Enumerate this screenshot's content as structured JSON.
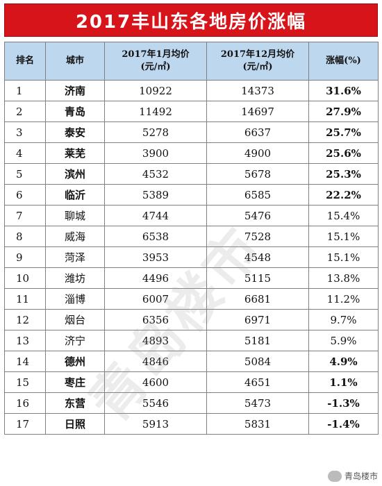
{
  "title": "2017丰山东各地房价涨幅",
  "table": {
    "headers": [
      {
        "line1": "排名",
        "line2": ""
      },
      {
        "line1": "城市",
        "line2": ""
      },
      {
        "line1": "2017年1月均价",
        "line2": "(元/㎡)"
      },
      {
        "line1": "2017年12月均价",
        "line2": "(元/㎡)"
      },
      {
        "line1": "涨幅(%)",
        "line2": ""
      }
    ],
    "rows": [
      {
        "rank": "1",
        "city": "济南",
        "jan": "10922",
        "dec": "14373",
        "pct": "31.6%",
        "highlight": "red"
      },
      {
        "rank": "2",
        "city": "青岛",
        "jan": "11492",
        "dec": "14697",
        "pct": "27.9%",
        "highlight": "red"
      },
      {
        "rank": "3",
        "city": "泰安",
        "jan": "5278",
        "dec": "6637",
        "pct": "25.7%",
        "highlight": "red"
      },
      {
        "rank": "4",
        "city": "莱芜",
        "jan": "3900",
        "dec": "4900",
        "pct": "25.6%",
        "highlight": "red"
      },
      {
        "rank": "5",
        "city": "滨州",
        "jan": "4532",
        "dec": "5678",
        "pct": "25.3%",
        "highlight": "red"
      },
      {
        "rank": "6",
        "city": "临沂",
        "jan": "5389",
        "dec": "6585",
        "pct": "22.2%",
        "highlight": "red"
      },
      {
        "rank": "7",
        "city": "聊城",
        "jan": "4744",
        "dec": "5476",
        "pct": "15.4%",
        "highlight": "none"
      },
      {
        "rank": "8",
        "city": "威海",
        "jan": "6538",
        "dec": "7528",
        "pct": "15.1%",
        "highlight": "none"
      },
      {
        "rank": "9",
        "city": "菏泽",
        "jan": "3953",
        "dec": "4548",
        "pct": "15.1%",
        "highlight": "none"
      },
      {
        "rank": "10",
        "city": "潍坊",
        "jan": "4496",
        "dec": "5115",
        "pct": "13.8%",
        "highlight": "none"
      },
      {
        "rank": "11",
        "city": "淄博",
        "jan": "6007",
        "dec": "6681",
        "pct": "11.2%",
        "highlight": "none"
      },
      {
        "rank": "12",
        "city": "烟台",
        "jan": "6356",
        "dec": "6971",
        "pct": "9.7%",
        "highlight": "none"
      },
      {
        "rank": "13",
        "city": "济宁",
        "jan": "4893",
        "dec": "5181",
        "pct": "5.9%",
        "highlight": "none"
      },
      {
        "rank": "14",
        "city": "德州",
        "jan": "4846",
        "dec": "5084",
        "pct": "4.9%",
        "highlight": "green"
      },
      {
        "rank": "15",
        "city": "枣庄",
        "jan": "4600",
        "dec": "4651",
        "pct": "1.1%",
        "highlight": "green"
      },
      {
        "rank": "16",
        "city": "东营",
        "jan": "5546",
        "dec": "5473",
        "pct": "-1.3%",
        "highlight": "green"
      },
      {
        "rank": "17",
        "city": "日照",
        "jan": "5913",
        "dec": "5831",
        "pct": "-1.4%",
        "highlight": "green"
      }
    ]
  },
  "watermark": "青岛楼市",
  "corner_mark": "青岛楼市",
  "colors": {
    "title_bg": "#d7141a",
    "header_bg": "#bdd7ee",
    "highlight_red": "#d9251c",
    "highlight_green": "#2e8b23"
  }
}
